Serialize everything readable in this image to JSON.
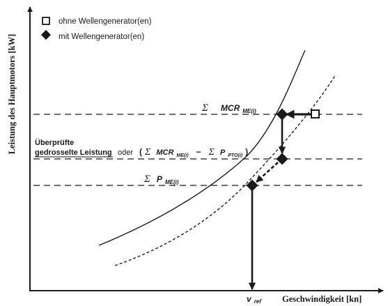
{
  "legend": {
    "without_label": "ohne Wellengenerator(en)",
    "with_label": "mit Wellengenerator(en)"
  },
  "axes": {
    "y_title": "Leistung des Hauptmotors  [kW]",
    "x_title": "Geschwindigkeit [kn]"
  },
  "levels": {
    "mcr": {
      "sigma": "Σ",
      "main": "MCR",
      "sub": "ME(i)"
    },
    "checked": {
      "line1": "Überprüfte",
      "line2": "gedrosselte Leistung",
      "oder": "oder",
      "open_paren": "(",
      "sigma1": "Σ",
      "mcr": "MCR",
      "mcr_sub": "ME(i)",
      "minus": "−",
      "sigma2": "Σ",
      "p": "P",
      "p_sub": "PTO(i)",
      "close_paren": ")"
    },
    "p_me": {
      "sigma": "Σ",
      "main": "P",
      "sub": "ME(i)"
    }
  },
  "vref": {
    "main": "v",
    "sub": "ref"
  },
  "colors": {
    "ink": "#1a1a1a",
    "background": "#ffffff"
  }
}
